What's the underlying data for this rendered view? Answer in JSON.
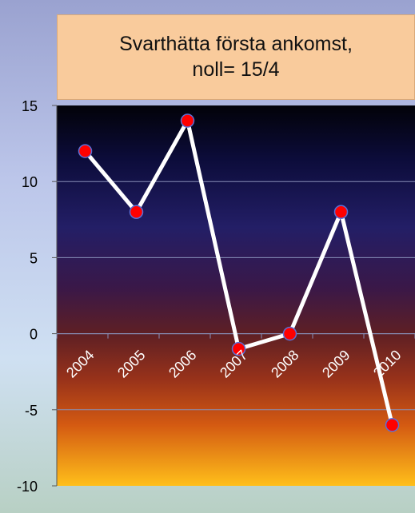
{
  "chart_data": {
    "type": "line",
    "title": "Svarthätta första ankomst,\nnoll= 15/4",
    "xlabel": "",
    "ylabel": "",
    "categories": [
      "2004",
      "2005",
      "2006",
      "2007",
      "2008",
      "2009",
      "2010"
    ],
    "series": [
      {
        "values": [
          12,
          8,
          14,
          -1,
          0,
          8,
          -6
        ]
      }
    ],
    "ylim": [
      -10,
      15
    ],
    "yticks": [
      -10,
      -5,
      0,
      5,
      10,
      15
    ],
    "grid": true,
    "legend": "none",
    "colors": {
      "line": "#ffffff",
      "marker_fill": "#ff0000",
      "marker_stroke": "#5b6fd6",
      "grid": "#8890b8",
      "title_background": "#f9cb9c"
    }
  }
}
